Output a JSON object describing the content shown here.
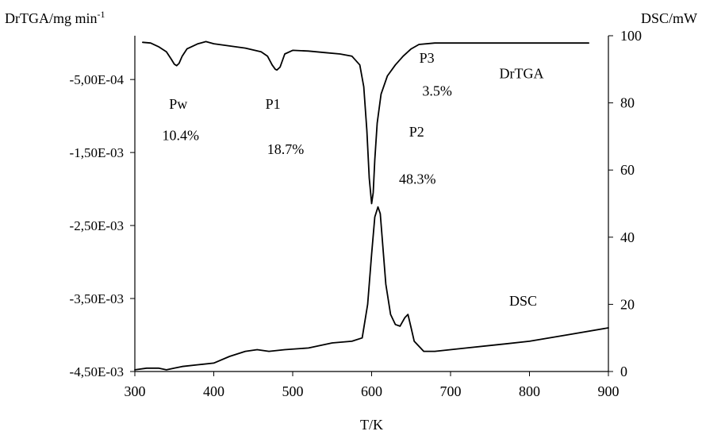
{
  "chart_data": {
    "type": "line",
    "title": "",
    "xlabel": "T/K",
    "ylabel_left": "DrTGA/mg min",
    "ylabel_left_superscript": "-1",
    "ylabel_right": "DSC/mW",
    "xlim": [
      300,
      900
    ],
    "ylim_left": [
      -0.0045,
      0.0001
    ],
    "ylim_right": [
      0,
      100
    ],
    "x_ticks": [
      "300",
      "400",
      "500",
      "600",
      "700",
      "800",
      "900"
    ],
    "y_left_ticks": [
      "-5,00E-04",
      "-1,50E-03",
      "-2,50E-03",
      "-3,50E-03",
      "-4,50E-03"
    ],
    "y_left_tick_values": [
      -0.0005,
      -0.0015,
      -0.0025,
      -0.0035,
      -0.0045
    ],
    "y_right_ticks": [
      "100",
      "80",
      "60",
      "40",
      "20",
      "0"
    ],
    "y_right_tick_values": [
      100,
      80,
      60,
      40,
      20,
      0
    ],
    "grid": false,
    "legend": "none",
    "series": [
      {
        "name": "DrTGA",
        "axis": "left",
        "x": [
          310,
          320,
          330,
          340,
          346,
          350,
          353,
          356,
          360,
          366,
          372,
          380,
          390,
          400,
          420,
          440,
          460,
          468,
          474,
          478,
          480,
          484,
          490,
          500,
          520,
          540,
          560,
          575,
          585,
          590,
          594,
          597,
          600,
          602,
          604,
          607,
          612,
          620,
          630,
          640,
          650,
          660,
          680,
          700,
          750,
          800,
          850,
          875
        ],
        "y": [
          1e-05,
          0.0,
          -5e-05,
          -0.00012,
          -0.00022,
          -0.00029,
          -0.00031,
          -0.00028,
          -0.00018,
          -8e-05,
          -5e-05,
          -1e-05,
          2e-05,
          -1e-05,
          -4e-05,
          -7e-05,
          -0.00012,
          -0.00018,
          -0.0003,
          -0.00036,
          -0.00037,
          -0.00033,
          -0.00015,
          -0.0001,
          -0.00011,
          -0.00013,
          -0.00015,
          -0.00018,
          -0.0003,
          -0.0006,
          -0.0012,
          -0.00185,
          -0.0022,
          -0.00205,
          -0.0016,
          -0.0011,
          -0.0007,
          -0.00045,
          -0.0003,
          -0.00018,
          -8e-05,
          -2e-05,
          0.0,
          0.0,
          0.0,
          0.0,
          0.0,
          0.0
        ]
      },
      {
        "name": "DSC",
        "axis": "right",
        "x": [
          300,
          315,
          330,
          340,
          350,
          360,
          380,
          400,
          420,
          440,
          455,
          470,
          490,
          520,
          550,
          575,
          588,
          595,
          600,
          604,
          608,
          611,
          614,
          618,
          624,
          630,
          636,
          642,
          646,
          650,
          654,
          660,
          666,
          680,
          720,
          760,
          800,
          850,
          900
        ],
        "y": [
          0.5,
          1.0,
          1.0,
          0.5,
          1.0,
          1.5,
          2.0,
          2.5,
          4.5,
          6.0,
          6.5,
          6.0,
          6.5,
          7.0,
          8.5,
          9.0,
          10.0,
          20.0,
          35.0,
          46.0,
          49.0,
          47.0,
          38.0,
          26.0,
          17.0,
          14.0,
          13.5,
          16.0,
          17.0,
          13.0,
          9.0,
          7.5,
          6.0,
          6.0,
          7.0,
          8.0,
          9.0,
          11.0,
          13.0
        ]
      }
    ],
    "annotations": [
      {
        "text": "Pw",
        "x": 355,
        "y_left": -0.0009
      },
      {
        "text": "10.4%",
        "x": 358,
        "y_left": -0.00133
      },
      {
        "text": "P1",
        "x": 475,
        "y_left": -0.0009
      },
      {
        "text": "18.7%",
        "x": 491,
        "y_left": -0.00152
      },
      {
        "text": "P3",
        "x": 670,
        "y_left": -0.00027
      },
      {
        "text": "3.5%",
        "x": 683,
        "y_left": -0.00072
      },
      {
        "text": "P2",
        "x": 657,
        "y_left": -0.00128
      },
      {
        "text": "48.3%",
        "x": 658,
        "y_left": -0.00193
      },
      {
        "text": "DrTGA",
        "x": 790,
        "y_left": -0.00048
      },
      {
        "text": "DSC",
        "x": 792,
        "y_left": -0.0036
      }
    ]
  }
}
